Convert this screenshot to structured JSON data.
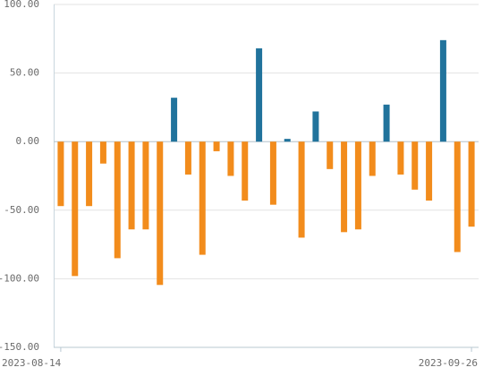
{
  "chart_data": {
    "type": "bar",
    "categories": [
      "2023-08-14",
      null,
      null,
      null,
      null,
      null,
      null,
      null,
      null,
      null,
      null,
      null,
      null,
      null,
      null,
      null,
      null,
      null,
      null,
      null,
      null,
      null,
      null,
      null,
      null,
      null,
      null,
      null,
      null,
      "2023-09-26"
    ],
    "values": [
      -47,
      -98,
      -47,
      -16,
      -85,
      -64,
      -64,
      -104.5,
      32,
      -24,
      -82.5,
      -7,
      -25,
      -43,
      68,
      -46,
      2,
      -70,
      22,
      -20,
      -66,
      -64,
      -25,
      27,
      -24,
      -35,
      -43,
      74,
      -80.5,
      -62
    ],
    "positive_color": "#21739c",
    "negative_color": "#f28c1c",
    "ylim": [
      -150,
      100
    ],
    "yticks": [
      {
        "value": -150,
        "label": "-150.00"
      },
      {
        "value": -100,
        "label": "-100.00"
      },
      {
        "value": -50,
        "label": "-50.00"
      },
      {
        "value": 0,
        "label": "0.00"
      },
      {
        "value": 50,
        "label": "50.00"
      },
      {
        "value": 100,
        "label": "100.00"
      }
    ],
    "grid": true
  }
}
